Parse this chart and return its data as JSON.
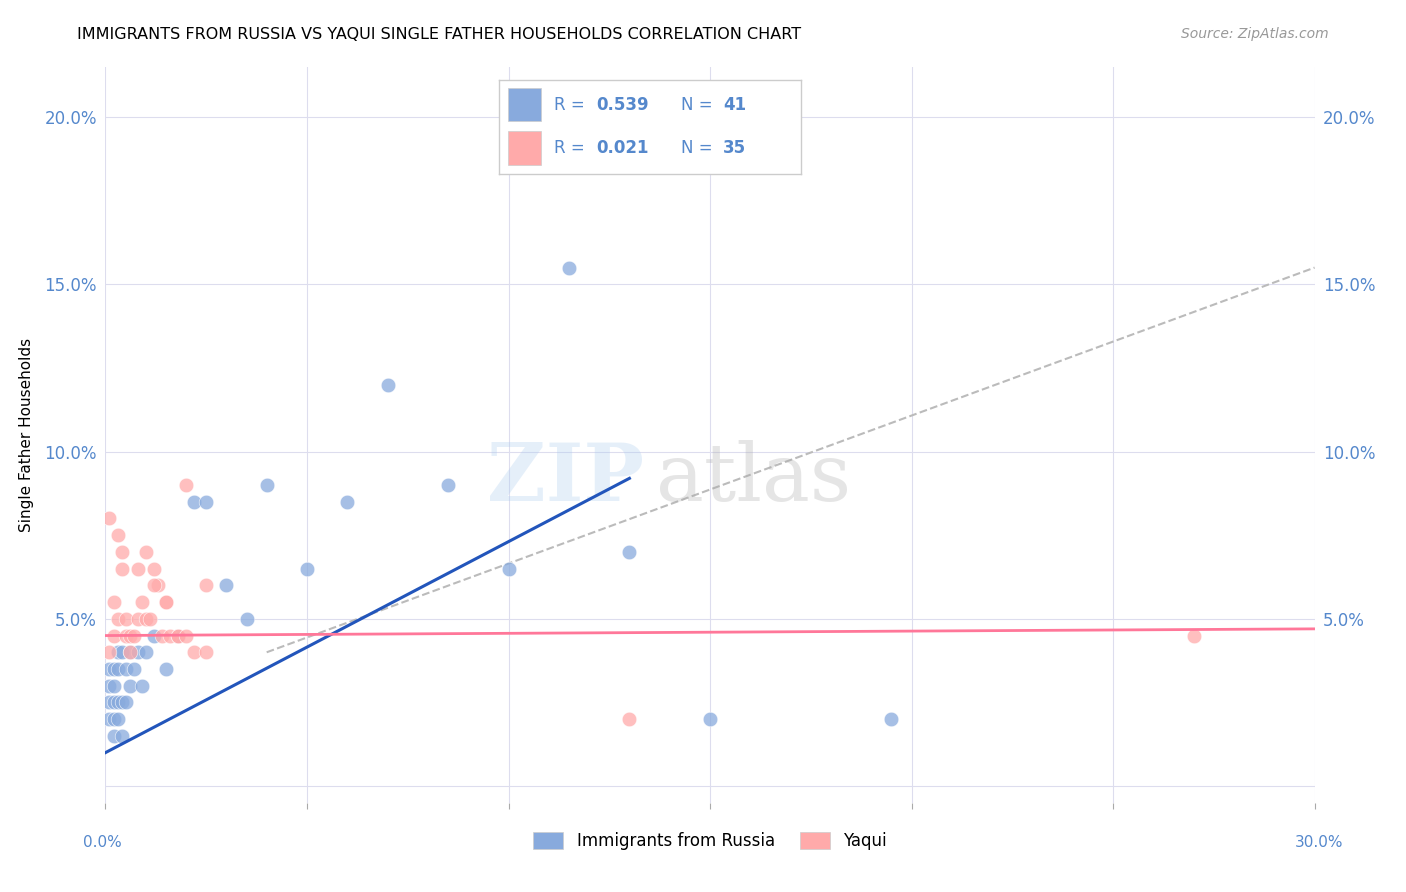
{
  "title": "IMMIGRANTS FROM RUSSIA VS YAQUI SINGLE FATHER HOUSEHOLDS CORRELATION CHART",
  "source": "Source: ZipAtlas.com",
  "ylabel": "Single Father Households",
  "ytick_values": [
    0.0,
    0.05,
    0.1,
    0.15,
    0.2
  ],
  "ytick_labels": [
    "",
    "5.0%",
    "10.0%",
    "15.0%",
    "20.0%"
  ],
  "xlim": [
    0.0,
    0.3
  ],
  "ylim": [
    -0.005,
    0.215
  ],
  "blue_color": "#88AADD",
  "pink_color": "#FFAAAA",
  "blue_line_color": "#2255BB",
  "pink_line_color": "#FF7799",
  "gray_dash_color": "#BBBBBB",
  "tick_color": "#5588CC",
  "grid_color": "#DDDDEE",
  "russia_x": [
    0.001,
    0.001,
    0.001,
    0.001,
    0.002,
    0.002,
    0.002,
    0.002,
    0.002,
    0.003,
    0.003,
    0.003,
    0.003,
    0.004,
    0.004,
    0.004,
    0.005,
    0.005,
    0.006,
    0.006,
    0.007,
    0.008,
    0.009,
    0.01,
    0.012,
    0.015,
    0.018,
    0.022,
    0.025,
    0.03,
    0.035,
    0.04,
    0.05,
    0.06,
    0.07,
    0.085,
    0.1,
    0.115,
    0.13,
    0.15,
    0.195
  ],
  "russia_y": [
    0.02,
    0.025,
    0.03,
    0.035,
    0.015,
    0.02,
    0.025,
    0.03,
    0.035,
    0.02,
    0.025,
    0.035,
    0.04,
    0.015,
    0.025,
    0.04,
    0.025,
    0.035,
    0.03,
    0.04,
    0.035,
    0.04,
    0.03,
    0.04,
    0.045,
    0.035,
    0.045,
    0.085,
    0.085,
    0.06,
    0.05,
    0.09,
    0.065,
    0.085,
    0.12,
    0.09,
    0.065,
    0.155,
    0.07,
    0.02,
    0.02
  ],
  "yaqui_x": [
    0.001,
    0.001,
    0.002,
    0.002,
    0.003,
    0.003,
    0.004,
    0.004,
    0.005,
    0.005,
    0.006,
    0.006,
    0.007,
    0.008,
    0.009,
    0.01,
    0.011,
    0.012,
    0.013,
    0.014,
    0.015,
    0.016,
    0.018,
    0.02,
    0.022,
    0.025,
    0.008,
    0.01,
    0.012,
    0.015,
    0.018,
    0.02,
    0.025,
    0.13,
    0.27
  ],
  "yaqui_y": [
    0.04,
    0.08,
    0.045,
    0.055,
    0.075,
    0.05,
    0.065,
    0.07,
    0.045,
    0.05,
    0.045,
    0.04,
    0.045,
    0.05,
    0.055,
    0.05,
    0.05,
    0.065,
    0.06,
    0.045,
    0.055,
    0.045,
    0.045,
    0.09,
    0.04,
    0.04,
    0.065,
    0.07,
    0.06,
    0.055,
    0.045,
    0.045,
    0.06,
    0.02,
    0.045
  ],
  "blue_line_x0": 0.0,
  "blue_line_y0": 0.01,
  "blue_line_x1": 0.13,
  "blue_line_y1": 0.092,
  "pink_line_x0": 0.0,
  "pink_line_y0": 0.045,
  "pink_line_x1": 0.3,
  "pink_line_y1": 0.047,
  "gray_line_x0": 0.04,
  "gray_line_y0": 0.04,
  "gray_line_x1": 0.3,
  "gray_line_y1": 0.155,
  "watermark_zip": "ZIP",
  "watermark_atlas": "atlas",
  "legend_r1": "0.539",
  "legend_n1": "41",
  "legend_r2": "0.021",
  "legend_n2": "35"
}
